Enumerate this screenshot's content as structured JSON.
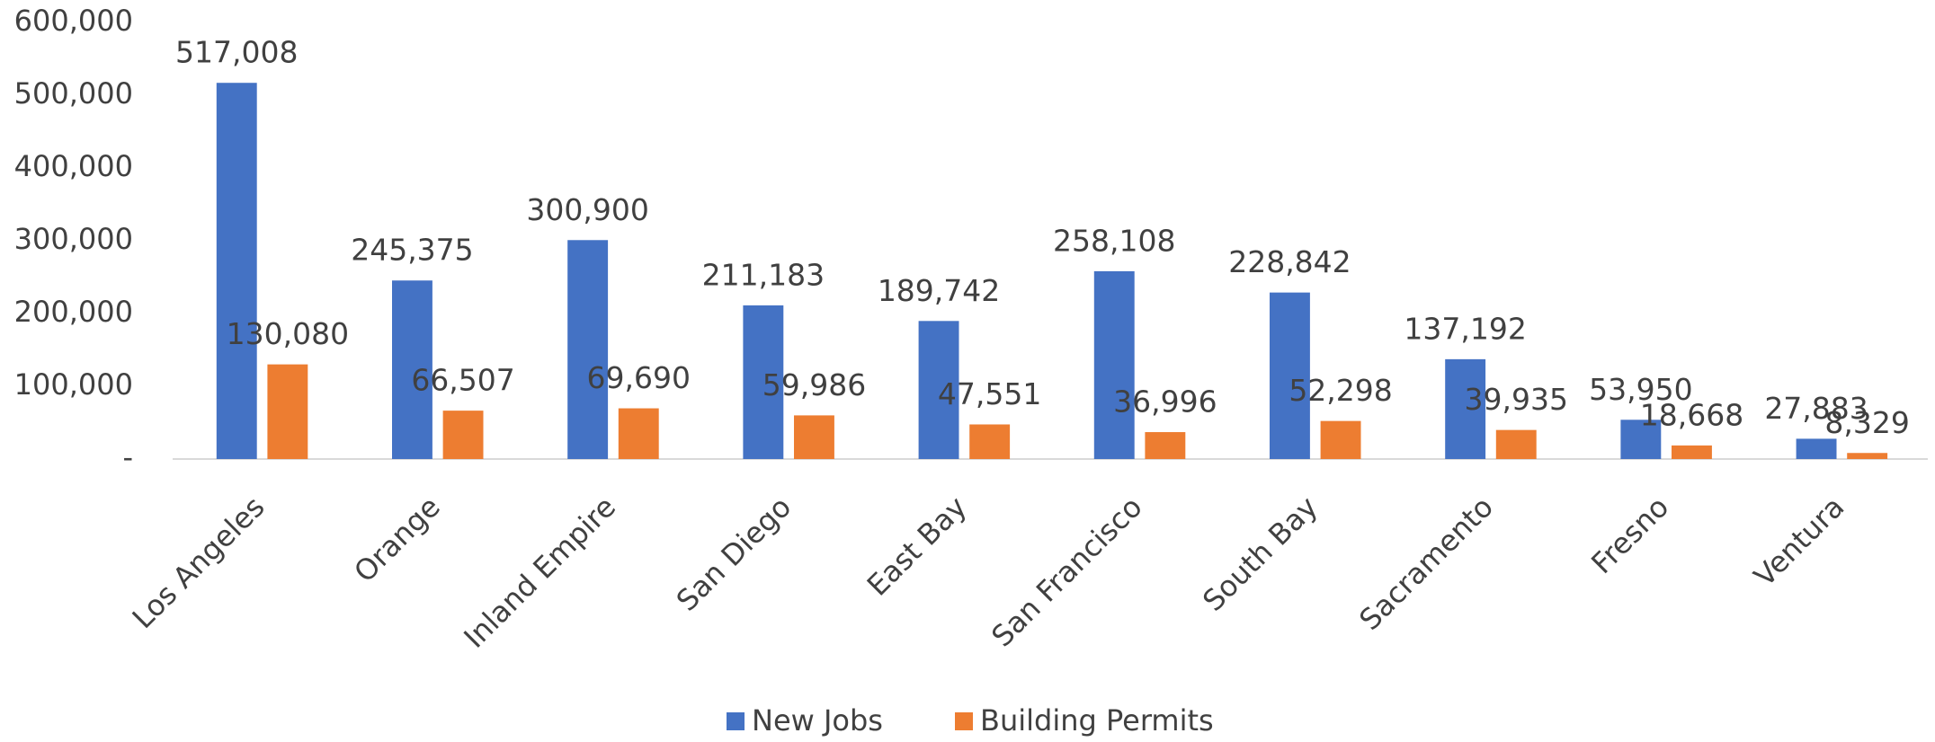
{
  "chart_data": {
    "type": "bar",
    "categories": [
      "Los Angeles",
      "Orange",
      "Inland Empire",
      "San Diego",
      "East Bay",
      "San Francisco",
      "South Bay",
      "Sacramento",
      "Fresno",
      "Ventura"
    ],
    "series": [
      {
        "name": "New Jobs",
        "color": "#4472c4",
        "values": [
          517008,
          245375,
          300900,
          211183,
          189742,
          258108,
          228842,
          137192,
          53950,
          27883
        ],
        "value_labels": [
          "517,008",
          "245,375",
          "300,900",
          "211,183",
          "189,742",
          "258,108",
          "228,842",
          "137,192",
          "53,950",
          "27,883"
        ]
      },
      {
        "name": "Building Permits",
        "color": "#ed7d31",
        "values": [
          130080,
          66507,
          69690,
          59986,
          47551,
          36996,
          52298,
          39935,
          18668,
          8329
        ],
        "value_labels": [
          "130,080",
          "66,507",
          "69,690",
          "59,986",
          "47,551",
          "36,996",
          "52,298",
          "39,935",
          "18,668",
          "8,329"
        ]
      }
    ],
    "ylim": [
      0,
      600000
    ],
    "yticks": [
      {
        "value": 0,
        "label": "-"
      },
      {
        "value": 100000,
        "label": "100,000"
      },
      {
        "value": 200000,
        "label": "200,000"
      },
      {
        "value": 300000,
        "label": "300,000"
      },
      {
        "value": 400000,
        "label": "400,000"
      },
      {
        "value": 500000,
        "label": "500,000"
      },
      {
        "value": 600000,
        "label": "600,000"
      }
    ],
    "legend": "bottom"
  }
}
